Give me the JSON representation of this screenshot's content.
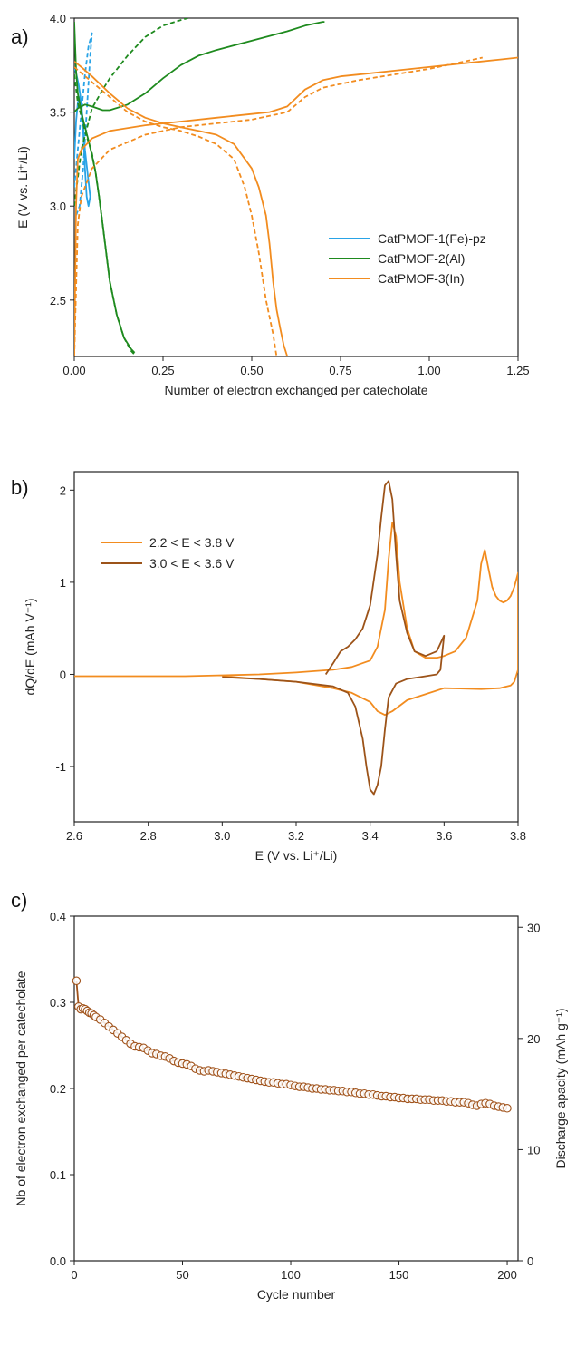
{
  "panels": [
    {
      "label": "a)",
      "xlabel": "Number of electron exchanged per catecholate",
      "ylabel": "E (V vs. Li⁺/Li)",
      "xlim": [
        0,
        1.25
      ],
      "ylim": [
        2.2,
        4.0
      ],
      "xticks": [
        "0.00",
        "0.25",
        "0.50",
        "0.75",
        "1.00",
        "1.25"
      ],
      "yticks": [
        "2.5",
        "3.0",
        "3.5",
        "4.0"
      ],
      "legend": [
        "CatPMOF-1(Fe)-pz",
        "CatPMOF-2(Al)",
        "CatPMOF-3(In)"
      ]
    },
    {
      "label": "b)",
      "xlabel": "E (V vs. Li⁺/Li)",
      "ylabel": "dQ/dE  (mAh V⁻¹)",
      "xlim": [
        2.6,
        3.8
      ],
      "ylim": [
        -1.6,
        2.2
      ],
      "xticks": [
        "2.6",
        "2.8",
        "3.0",
        "3.2",
        "3.4",
        "3.6",
        "3.8"
      ],
      "yticks": [
        "-1",
        "0",
        "1",
        "2"
      ],
      "legend": [
        "2.2 < E < 3.8 V",
        "3.0 < E < 3.6 V"
      ]
    },
    {
      "label": "c)",
      "xlabel": "Cycle number",
      "ylabel": "Nb of electron exchanged per catecholate",
      "ylabel_right": "Discharge apacity (mAh g⁻¹)",
      "xlim": [
        0,
        205
      ],
      "ylim": [
        0,
        0.4
      ],
      "ylim_right": [
        0,
        31
      ],
      "xticks": [
        "0",
        "50",
        "100",
        "150",
        "200"
      ],
      "yticks": [
        "0.0",
        "0.1",
        "0.2",
        "0.3",
        "0.4"
      ],
      "yticks_right": [
        "0",
        "10",
        "20",
        "30"
      ]
    }
  ],
  "chart_data": [
    {
      "type": "line",
      "series": [
        {
          "name": "CatPMOF-1(Fe)-pz",
          "color": "#29a3e6",
          "style": "solid",
          "x": [
            0.0,
            0.005,
            0.01,
            0.015,
            0.02,
            0.025,
            0.03,
            0.035,
            0.04,
            0.045,
            0.03,
            0.02,
            0.012,
            0.006,
            0.003,
            0.001
          ],
          "y": [
            3.25,
            3.45,
            3.55,
            3.58,
            3.5,
            3.4,
            3.2,
            3.05,
            3.0,
            3.05,
            3.3,
            3.55,
            3.65,
            3.7,
            3.72,
            3.73
          ]
        },
        {
          "name": "CatPMOF-1(Fe)-pz",
          "color": "#29a3e6",
          "style": "dash",
          "x": [
            0.0,
            0.01,
            0.02,
            0.03,
            0.04,
            0.05,
            0.045,
            0.035,
            0.025,
            0.015,
            0.005
          ],
          "y": [
            3.1,
            3.3,
            3.5,
            3.7,
            3.85,
            3.92,
            3.8,
            3.5,
            3.2,
            3.0,
            2.95
          ]
        },
        {
          "name": "CatPMOF-2(Al)",
          "color": "#1e8a1e",
          "style": "solid",
          "x": [
            0.0,
            0.01,
            0.02,
            0.03,
            0.05,
            0.08,
            0.1,
            0.15,
            0.2,
            0.25,
            0.3,
            0.35,
            0.4,
            0.5,
            0.6,
            0.65,
            0.7,
            0.705
          ],
          "y": [
            3.5,
            3.52,
            3.53,
            3.54,
            3.53,
            3.51,
            3.51,
            3.54,
            3.6,
            3.68,
            3.75,
            3.8,
            3.83,
            3.88,
            3.93,
            3.96,
            3.98,
            3.98
          ]
        },
        {
          "name": "CatPMOF-2(Al)",
          "color": "#1e8a1e",
          "style": "solid",
          "x": [
            0.0,
            0.005,
            0.01,
            0.02,
            0.03,
            0.04,
            0.05,
            0.06,
            0.07,
            0.08,
            0.09,
            0.1,
            0.12,
            0.14,
            0.16,
            0.17
          ],
          "y": [
            3.98,
            3.72,
            3.6,
            3.5,
            3.42,
            3.35,
            3.27,
            3.18,
            3.05,
            2.9,
            2.75,
            2.6,
            2.42,
            2.3,
            2.24,
            2.22
          ]
        },
        {
          "name": "CatPMOF-2(Al)",
          "color": "#1e8a1e",
          "style": "dash",
          "x": [
            0.0,
            0.02,
            0.05,
            0.08,
            0.1,
            0.15,
            0.2,
            0.25,
            0.3,
            0.32
          ],
          "y": [
            3.0,
            3.3,
            3.52,
            3.62,
            3.68,
            3.8,
            3.9,
            3.96,
            3.99,
            4.0
          ]
        },
        {
          "name": "CatPMOF-2(Al)",
          "color": "#1e8a1e",
          "style": "dash",
          "x": [
            0.0,
            0.01,
            0.03,
            0.05,
            0.06,
            0.07,
            0.08,
            0.09,
            0.1,
            0.12,
            0.14,
            0.16,
            0.17
          ],
          "y": [
            3.7,
            3.55,
            3.4,
            3.28,
            3.18,
            3.05,
            2.9,
            2.75,
            2.6,
            2.42,
            2.3,
            2.23,
            2.21
          ]
        },
        {
          "name": "CatPMOF-3(In)",
          "color": "#f28c1f",
          "style": "solid",
          "x": [
            0.0,
            0.005,
            0.01,
            0.02,
            0.05,
            0.1,
            0.2,
            0.3,
            0.4,
            0.5,
            0.55,
            0.6,
            0.65,
            0.7,
            0.75,
            0.8,
            0.9,
            1.0,
            1.1,
            1.2,
            1.25
          ],
          "y": [
            2.2,
            3.0,
            3.25,
            3.3,
            3.36,
            3.4,
            3.43,
            3.45,
            3.47,
            3.49,
            3.5,
            3.53,
            3.62,
            3.67,
            3.69,
            3.7,
            3.72,
            3.74,
            3.76,
            3.78,
            3.79
          ]
        },
        {
          "name": "CatPMOF-3(In)",
          "color": "#f28c1f",
          "style": "solid",
          "x": [
            0.0,
            0.02,
            0.05,
            0.1,
            0.15,
            0.2,
            0.25,
            0.3,
            0.35,
            0.4,
            0.45,
            0.5,
            0.52,
            0.54,
            0.55,
            0.56,
            0.57,
            0.58,
            0.59,
            0.6
          ],
          "y": [
            3.77,
            3.74,
            3.69,
            3.6,
            3.52,
            3.47,
            3.44,
            3.42,
            3.4,
            3.38,
            3.33,
            3.2,
            3.1,
            2.95,
            2.8,
            2.6,
            2.45,
            2.35,
            2.26,
            2.2
          ]
        },
        {
          "name": "CatPMOF-3(In)",
          "color": "#f28c1f",
          "style": "dash",
          "x": [
            0.0,
            0.01,
            0.02,
            0.05,
            0.1,
            0.2,
            0.3,
            0.4,
            0.5,
            0.6,
            0.65,
            0.7,
            0.8,
            0.9,
            1.0,
            1.1,
            1.15
          ],
          "y": [
            2.2,
            2.9,
            3.05,
            3.2,
            3.3,
            3.38,
            3.42,
            3.44,
            3.46,
            3.5,
            3.58,
            3.63,
            3.67,
            3.7,
            3.73,
            3.77,
            3.79
          ]
        },
        {
          "name": "CatPMOF-3(In)",
          "color": "#f28c1f",
          "style": "dash",
          "x": [
            0.0,
            0.05,
            0.1,
            0.15,
            0.2,
            0.25,
            0.3,
            0.35,
            0.4,
            0.45,
            0.48,
            0.5,
            0.52,
            0.54,
            0.56,
            0.57
          ],
          "y": [
            3.74,
            3.66,
            3.58,
            3.5,
            3.45,
            3.42,
            3.4,
            3.37,
            3.33,
            3.25,
            3.1,
            2.95,
            2.75,
            2.5,
            2.32,
            2.2
          ]
        }
      ]
    },
    {
      "type": "line",
      "series": [
        {
          "name": "2.2 < E < 3.8 V",
          "color": "#f28c1f",
          "x": [
            2.6,
            2.9,
            3.0,
            3.1,
            3.2,
            3.3,
            3.35,
            3.4,
            3.42,
            3.44,
            3.45,
            3.46,
            3.47,
            3.48,
            3.5,
            3.52,
            3.55,
            3.58,
            3.6,
            3.63,
            3.66,
            3.69,
            3.7,
            3.71,
            3.72,
            3.73,
            3.74,
            3.75,
            3.76,
            3.77,
            3.78,
            3.79,
            3.8,
            3.8,
            3.79,
            3.78,
            3.75,
            3.7,
            3.6,
            3.5,
            3.46,
            3.44,
            3.42,
            3.4,
            3.35,
            3.3,
            3.2,
            3.1,
            3.0
          ],
          "y": [
            -0.02,
            -0.02,
            -0.01,
            0.0,
            0.02,
            0.05,
            0.08,
            0.15,
            0.3,
            0.7,
            1.25,
            1.65,
            1.5,
            1.0,
            0.5,
            0.25,
            0.18,
            0.18,
            0.2,
            0.25,
            0.4,
            0.8,
            1.2,
            1.35,
            1.15,
            0.95,
            0.85,
            0.8,
            0.78,
            0.8,
            0.85,
            0.95,
            1.1,
            0.05,
            -0.08,
            -0.12,
            -0.15,
            -0.16,
            -0.15,
            -0.28,
            -0.4,
            -0.44,
            -0.4,
            -0.3,
            -0.2,
            -0.15,
            -0.08,
            -0.05,
            -0.02
          ]
        },
        {
          "name": "3.0 < E < 3.6 V",
          "color": "#9c5319",
          "x": [
            3.28,
            3.3,
            3.32,
            3.34,
            3.36,
            3.38,
            3.4,
            3.42,
            3.43,
            3.44,
            3.45,
            3.46,
            3.47,
            3.48,
            3.5,
            3.52,
            3.55,
            3.58,
            3.6,
            3.59,
            3.58,
            3.55,
            3.5,
            3.47,
            3.45,
            3.44,
            3.43,
            3.42,
            3.41,
            3.4,
            3.39,
            3.38,
            3.36,
            3.34,
            3.3,
            3.2,
            3.1,
            3.0
          ],
          "y": [
            0.0,
            0.12,
            0.25,
            0.3,
            0.38,
            0.5,
            0.75,
            1.3,
            1.7,
            2.05,
            2.1,
            1.9,
            1.3,
            0.8,
            0.45,
            0.25,
            0.2,
            0.25,
            0.42,
            0.05,
            0.0,
            -0.02,
            -0.05,
            -0.1,
            -0.25,
            -0.6,
            -1.0,
            -1.2,
            -1.3,
            -1.25,
            -1.0,
            -0.7,
            -0.35,
            -0.2,
            -0.13,
            -0.08,
            -0.05,
            -0.03
          ]
        }
      ]
    },
    {
      "type": "scatter",
      "series": [
        {
          "name": "",
          "color": "#a0521a",
          "x": [
            1,
            2,
            3,
            4,
            5,
            6,
            7,
            8,
            9,
            10,
            12,
            14,
            16,
            18,
            20,
            22,
            24,
            26,
            28,
            30,
            32,
            34,
            36,
            38,
            40,
            42,
            44,
            46,
            48,
            50,
            52,
            54,
            56,
            58,
            60,
            62,
            64,
            66,
            68,
            70,
            72,
            74,
            76,
            78,
            80,
            82,
            84,
            86,
            88,
            90,
            92,
            94,
            96,
            98,
            100,
            102,
            104,
            106,
            108,
            110,
            112,
            114,
            116,
            118,
            120,
            122,
            124,
            126,
            128,
            130,
            132,
            134,
            136,
            138,
            140,
            142,
            144,
            146,
            148,
            150,
            152,
            154,
            156,
            158,
            160,
            162,
            164,
            166,
            168,
            170,
            172,
            174,
            176,
            178,
            180,
            182,
            184,
            186,
            188,
            190,
            192,
            194,
            196,
            198,
            200
          ],
          "y": [
            0.325,
            0.295,
            0.292,
            0.293,
            0.292,
            0.29,
            0.288,
            0.287,
            0.285,
            0.283,
            0.28,
            0.276,
            0.272,
            0.268,
            0.264,
            0.26,
            0.256,
            0.252,
            0.249,
            0.248,
            0.247,
            0.244,
            0.241,
            0.24,
            0.238,
            0.237,
            0.235,
            0.232,
            0.23,
            0.229,
            0.228,
            0.226,
            0.223,
            0.221,
            0.22,
            0.221,
            0.22,
            0.219,
            0.218,
            0.217,
            0.216,
            0.215,
            0.214,
            0.213,
            0.212,
            0.211,
            0.21,
            0.209,
            0.208,
            0.207,
            0.207,
            0.206,
            0.205,
            0.205,
            0.204,
            0.203,
            0.202,
            0.202,
            0.201,
            0.2,
            0.2,
            0.199,
            0.199,
            0.198,
            0.198,
            0.197,
            0.197,
            0.196,
            0.196,
            0.195,
            0.194,
            0.194,
            0.193,
            0.193,
            0.192,
            0.191,
            0.191,
            0.19,
            0.19,
            0.189,
            0.189,
            0.188,
            0.188,
            0.188,
            0.187,
            0.187,
            0.187,
            0.186,
            0.186,
            0.186,
            0.185,
            0.185,
            0.184,
            0.184,
            0.184,
            0.183,
            0.181,
            0.18,
            0.182,
            0.183,
            0.182,
            0.18,
            0.179,
            0.178,
            0.177
          ]
        }
      ]
    }
  ]
}
